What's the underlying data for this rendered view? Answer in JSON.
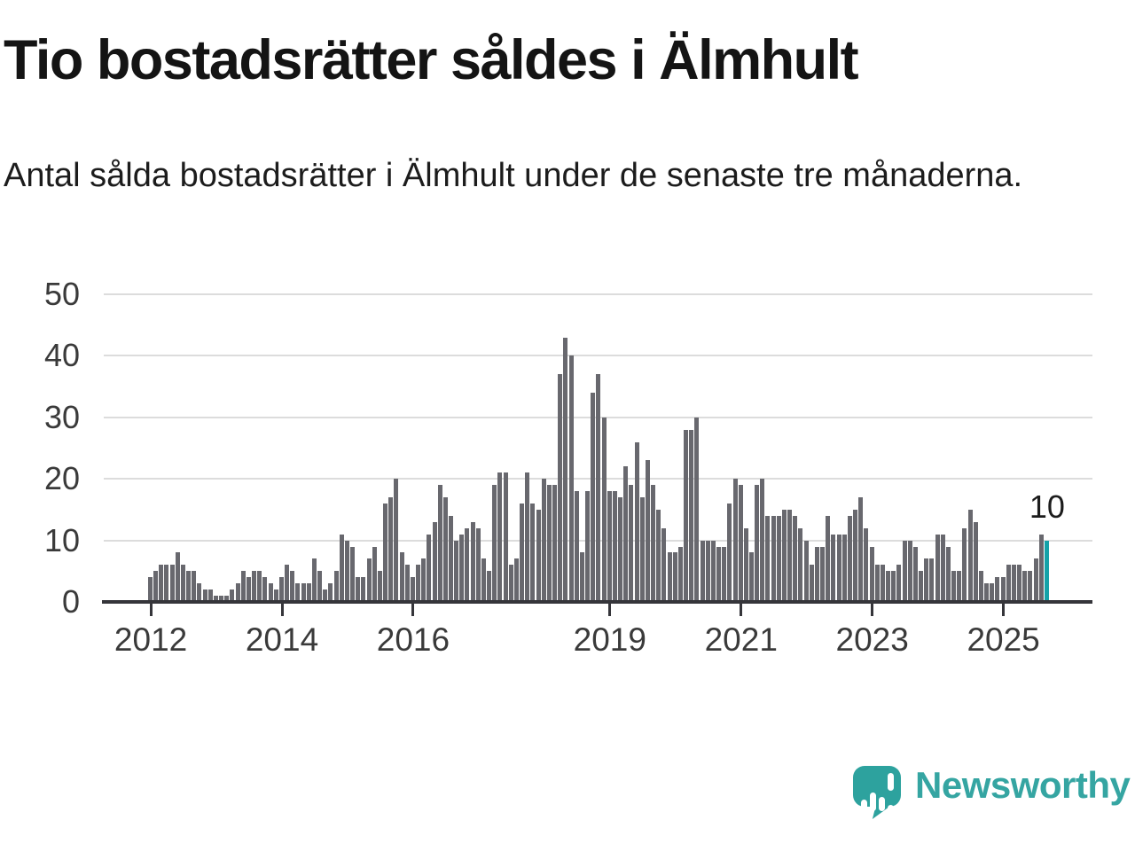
{
  "header": {
    "title": "Tio bostadsrätter såldes i Älmhult",
    "subtitle": "Antal sålda bostadsrätter i Älmhult under de senaste tre månaderna."
  },
  "chart_data": {
    "type": "bar",
    "title": "Tio bostadsrätter såldes i Älmhult",
    "x_start": "2012-01",
    "frequency": "monthly",
    "ylabel": "",
    "xlabel": "",
    "ylim": [
      0,
      50
    ],
    "grid": "horizontal",
    "y_ticks": [
      0,
      10,
      20,
      30,
      40,
      50
    ],
    "x_ticks": [
      {
        "label": "2012",
        "month": 0
      },
      {
        "label": "2014",
        "month": 24
      },
      {
        "label": "2016",
        "month": 48
      },
      {
        "label": "2019",
        "month": 84
      },
      {
        "label": "2021",
        "month": 108
      },
      {
        "label": "2023",
        "month": 132
      },
      {
        "label": "2025",
        "month": 156
      }
    ],
    "values": [
      4,
      5,
      6,
      6,
      6,
      8,
      6,
      5,
      5,
      3,
      2,
      2,
      1,
      1,
      1,
      2,
      3,
      5,
      4,
      5,
      5,
      4,
      3,
      2,
      4,
      6,
      5,
      3,
      3,
      3,
      7,
      5,
      2,
      3,
      5,
      11,
      10,
      9,
      4,
      4,
      7,
      9,
      5,
      16,
      17,
      20,
      8,
      6,
      4,
      6,
      7,
      11,
      13,
      19,
      17,
      14,
      10,
      11,
      12,
      13,
      12,
      7,
      5,
      19,
      21,
      21,
      6,
      7,
      16,
      21,
      16,
      15,
      20,
      19,
      19,
      37,
      43,
      40,
      18,
      8,
      18,
      34,
      37,
      30,
      18,
      18,
      17,
      22,
      19,
      26,
      17,
      23,
      19,
      15,
      12,
      8,
      8,
      9,
      28,
      28,
      30,
      10,
      10,
      10,
      9,
      9,
      16,
      20,
      19,
      12,
      8,
      19,
      20,
      14,
      14,
      14,
      15,
      15,
      14,
      12,
      10,
      6,
      9,
      9,
      14,
      11,
      11,
      11,
      14,
      15,
      17,
      12,
      9,
      6,
      6,
      5,
      5,
      6,
      10,
      10,
      9,
      5,
      7,
      7,
      11,
      11,
      9,
      5,
      5,
      12,
      15,
      13,
      5,
      3,
      3,
      4,
      4,
      6,
      6,
      6,
      5,
      5,
      7,
      11,
      10
    ],
    "bar_color": "#68686e",
    "highlight": {
      "index": 164,
      "value": 10,
      "label": "10",
      "color": "#14a2a8"
    }
  },
  "footer": {
    "brand": "Newsworthy"
  }
}
